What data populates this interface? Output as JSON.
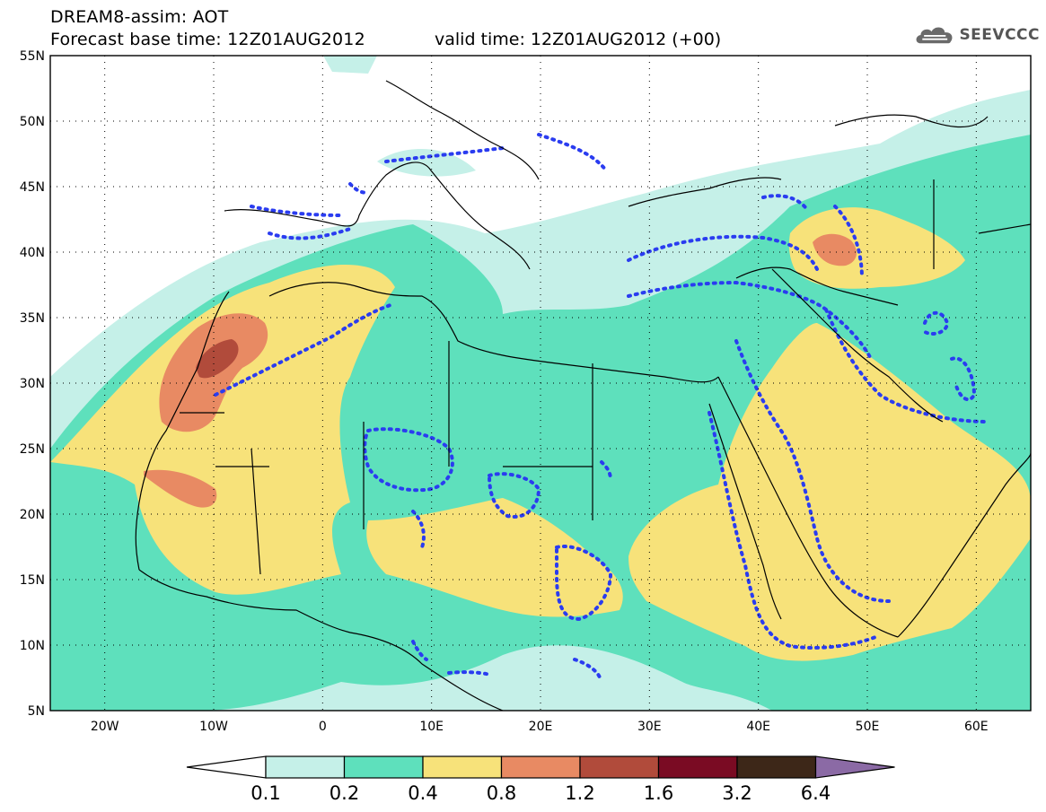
{
  "header": {
    "title_line1": "DREAM8-assim: AOT",
    "title_line2": "Forecast base time: 12Z01AUG2012",
    "valid_time": "valid time: 12Z01AUG2012 (+00)"
  },
  "logo": {
    "text": "SEEVCCC",
    "icon": "cloud-icon"
  },
  "axes": {
    "lat_labels": [
      "55N",
      "50N",
      "45N",
      "40N",
      "35N",
      "30N",
      "25N",
      "20N",
      "15N",
      "10N",
      "5N"
    ],
    "lon_labels": [
      "20W",
      "10W",
      "0",
      "10E",
      "20E",
      "30E",
      "40E",
      "50E",
      "60E"
    ],
    "lat_range": [
      5,
      55
    ],
    "lon_range": [
      -25,
      65
    ]
  },
  "colorbar": {
    "labels": [
      "0.1",
      "0.2",
      "0.4",
      "0.8",
      "1.2",
      "1.6",
      "3.2",
      "6.4"
    ],
    "colors": [
      "#ffffff",
      "#c5f0e8",
      "#5ee0bc",
      "#f7e27a",
      "#e88a63",
      "#b14b3b",
      "#7a0b23",
      "#3d2718",
      "#8b6aa5"
    ]
  },
  "field_colors": {
    "c0": "#c5f0e8",
    "c1": "#5ee0bc",
    "c2": "#f7e27a",
    "c3": "#e88a63",
    "c4": "#b14b3b",
    "dotted_contour": "#2a3cf0",
    "coastline": "#000000"
  }
}
